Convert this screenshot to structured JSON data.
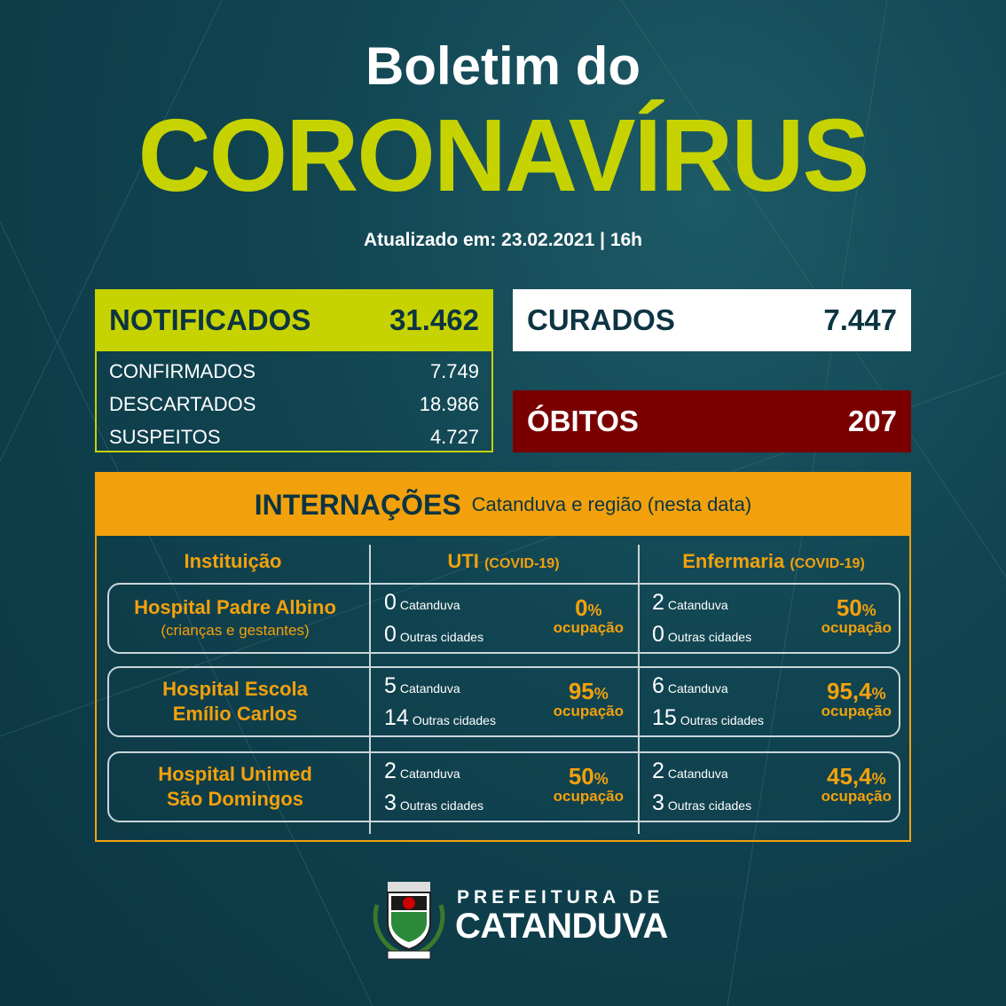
{
  "header": {
    "line1": "Boletim do",
    "line2": "CORONAVÍRUS",
    "updated": "Atualizado em: 23.02.2021 | 16h"
  },
  "notificados": {
    "label": "NOTIFICADOS",
    "value": "31.462",
    "rows": [
      {
        "label": "CONFIRMADOS",
        "value": "7.749"
      },
      {
        "label": "DESCARTADOS",
        "value": "18.986"
      },
      {
        "label": "SUSPEITOS",
        "value": "4.727"
      }
    ]
  },
  "curados": {
    "label": "CURADOS",
    "value": "7.447"
  },
  "obitos": {
    "label": "ÓBITOS",
    "value": "207"
  },
  "internacoes": {
    "title": "INTERNAÇÕES",
    "subtitle": "Catanduva e região (nesta data)",
    "columns": [
      {
        "main": "Instituição",
        "sub": ""
      },
      {
        "main": "UTI",
        "sub": "(COVID-19)"
      },
      {
        "main": "Enfermaria",
        "sub": "(COVID-19)"
      }
    ],
    "local_label": "Catanduva",
    "other_label": "Outras cidades",
    "occ_label": "ocupação",
    "pct_sign": "%",
    "rows": [
      {
        "name1": "Hospital Padre Albino",
        "name2": "(crianças e gestantes)",
        "uti": {
          "local": "0",
          "other": "0",
          "pct": "0"
        },
        "enf": {
          "local": "2",
          "other": "0",
          "pct": "50"
        }
      },
      {
        "name1": "Hospital Escola",
        "name2": "Emílio Carlos",
        "uti": {
          "local": "5",
          "other": "14",
          "pct": "95"
        },
        "enf": {
          "local": "6",
          "other": "15",
          "pct": "95,4"
        }
      },
      {
        "name1": "Hospital Unimed",
        "name2": "São Domingos",
        "uti": {
          "local": "2",
          "other": "3",
          "pct": "50"
        },
        "enf": {
          "local": "2",
          "other": "3",
          "pct": "45,4"
        }
      }
    ]
  },
  "footer": {
    "line1": "PREFEITURA DE",
    "line2": "CATANDUVA",
    "emblem_text": "CATANDUVA"
  },
  "colors": {
    "lime": "#c6d300",
    "orange": "#f2a10c",
    "red": "#7a0000",
    "navy": "#0d3442"
  }
}
